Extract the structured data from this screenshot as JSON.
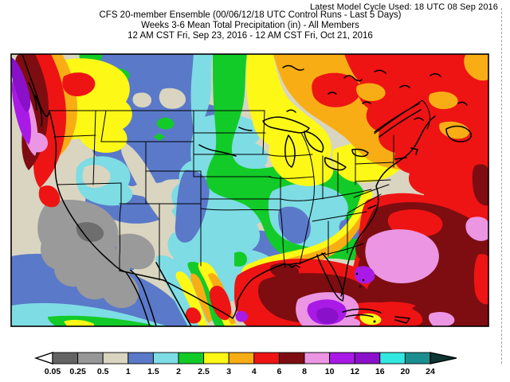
{
  "page": {
    "background": "#ffffff"
  },
  "header": {
    "model_cycle_note": "Latest Model Cycle Used: 18 UTC 08 Sep 2016"
  },
  "title": {
    "line1": "CFS 20-member Ensemble (00/06/12/18 UTC Control Runs - Last 5 Days)",
    "line2": "Weeks 3-6 Mean Total Precipitation (in) - All Members",
    "line3": "12 AM CST Fri, Sep 23, 2016 - 12 AM CST Fri, Oct 21, 2016"
  },
  "map": {
    "units": "in",
    "region": "Continental United States"
  },
  "legend": {
    "tick_labels": [
      "0.05",
      "0.25",
      "0.5",
      "1",
      "1.5",
      "2",
      "2.5",
      "3",
      "4",
      "6",
      "8",
      "10",
      "12",
      "16",
      "20",
      "24"
    ],
    "segment_colors": [
      "#646464",
      "#979797",
      "#d9d5c0",
      "#5a79c9",
      "#7edce4",
      "#12cb28",
      "#fdf816",
      "#f8ad15",
      "#ee1414",
      "#7d0d10",
      "#eb95e3",
      "#a91ae6",
      "#8a10ca",
      "#33e8e0",
      "#1b8f8f"
    ],
    "underflow_color": "#ffffff",
    "overflow_color": "#0e3634",
    "outline_color": "#000000"
  },
  "map_palette": {
    "dark_gray": "#6e6e6e",
    "gray": "#9a9a9a",
    "tan": "#d9d5c0",
    "slate": "#5a79c9",
    "cyan": "#7edce4",
    "green": "#12cb28",
    "yellow": "#fdf816",
    "orange": "#f8ad15",
    "red": "#ee1414",
    "maroon": "#7d0d10",
    "pink": "#eb95e3",
    "magenta": "#a91ae6",
    "purple": "#8a10ca"
  }
}
